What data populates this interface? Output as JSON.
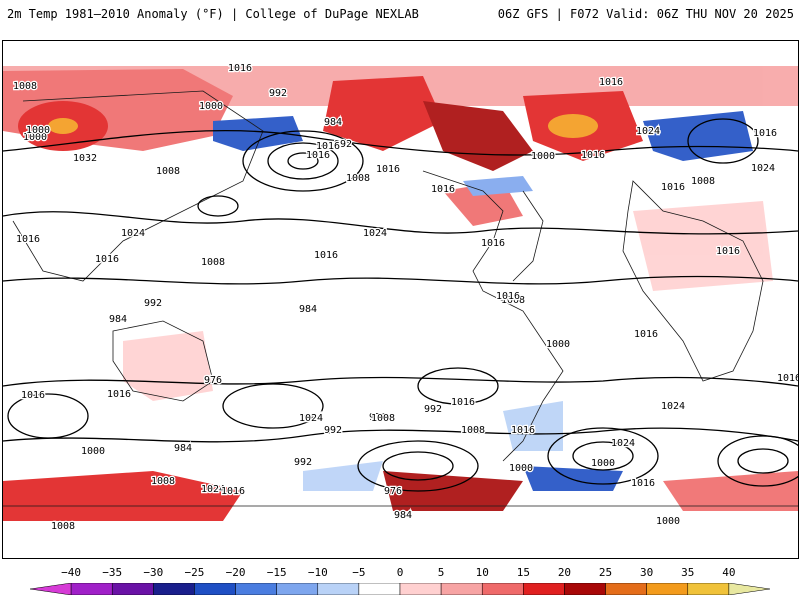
{
  "header": {
    "title": "2m Temp 1981–2010 Anomaly (°F) | College of DuPage NEXLAB",
    "run_info": "06Z GFS | F072 Valid: 06Z THU NOV 20 2025"
  },
  "colors": {
    "ocean_background": "#ffffff",
    "contour": "#000000",
    "coastline": "#1a1a1a"
  },
  "isobar_labels": [
    "1016",
    "1016",
    "1008",
    "992",
    "1000",
    "984",
    "992",
    "1016",
    "1008",
    "1016",
    "1000",
    "1016",
    "1024",
    "1016",
    "1016",
    "1024",
    "1016",
    "1016",
    "1008",
    "1008",
    "1016",
    "1016",
    "1024",
    "1000",
    "1024",
    "1016",
    "984",
    "1008",
    "992",
    "984",
    "976",
    "1000",
    "992",
    "976",
    "984",
    "992",
    "1008",
    "1000",
    "984",
    "992",
    "1000",
    "976",
    "984",
    "1016",
    "1008",
    "1024",
    "1008",
    "1000",
    "1016",
    "1016",
    "1032",
    "1000",
    "1008",
    "1016",
    "1016",
    "1008",
    "1016",
    "1016",
    "1016",
    "1000",
    "1024",
    "1016",
    "1024",
    "1016",
    "1024",
    "1016"
  ],
  "legend": {
    "ticks": [
      "−40",
      "−35",
      "−30",
      "−25",
      "−20",
      "−15",
      "−10",
      "−5",
      "0",
      "5",
      "10",
      "15",
      "20",
      "25",
      "30",
      "35",
      "40"
    ],
    "colors": [
      "#d63bd6",
      "#a020c8",
      "#6a12a6",
      "#1a1f8c",
      "#1f4fc4",
      "#4a7de0",
      "#7ea6ee",
      "#b9d2f7",
      "#ffffff",
      "#ffd0d0",
      "#f7a4a4",
      "#ef6a6a",
      "#e02020",
      "#a80808",
      "#e46d1a",
      "#f39b1c",
      "#f0c23a",
      "#e8e8a0"
    ]
  }
}
